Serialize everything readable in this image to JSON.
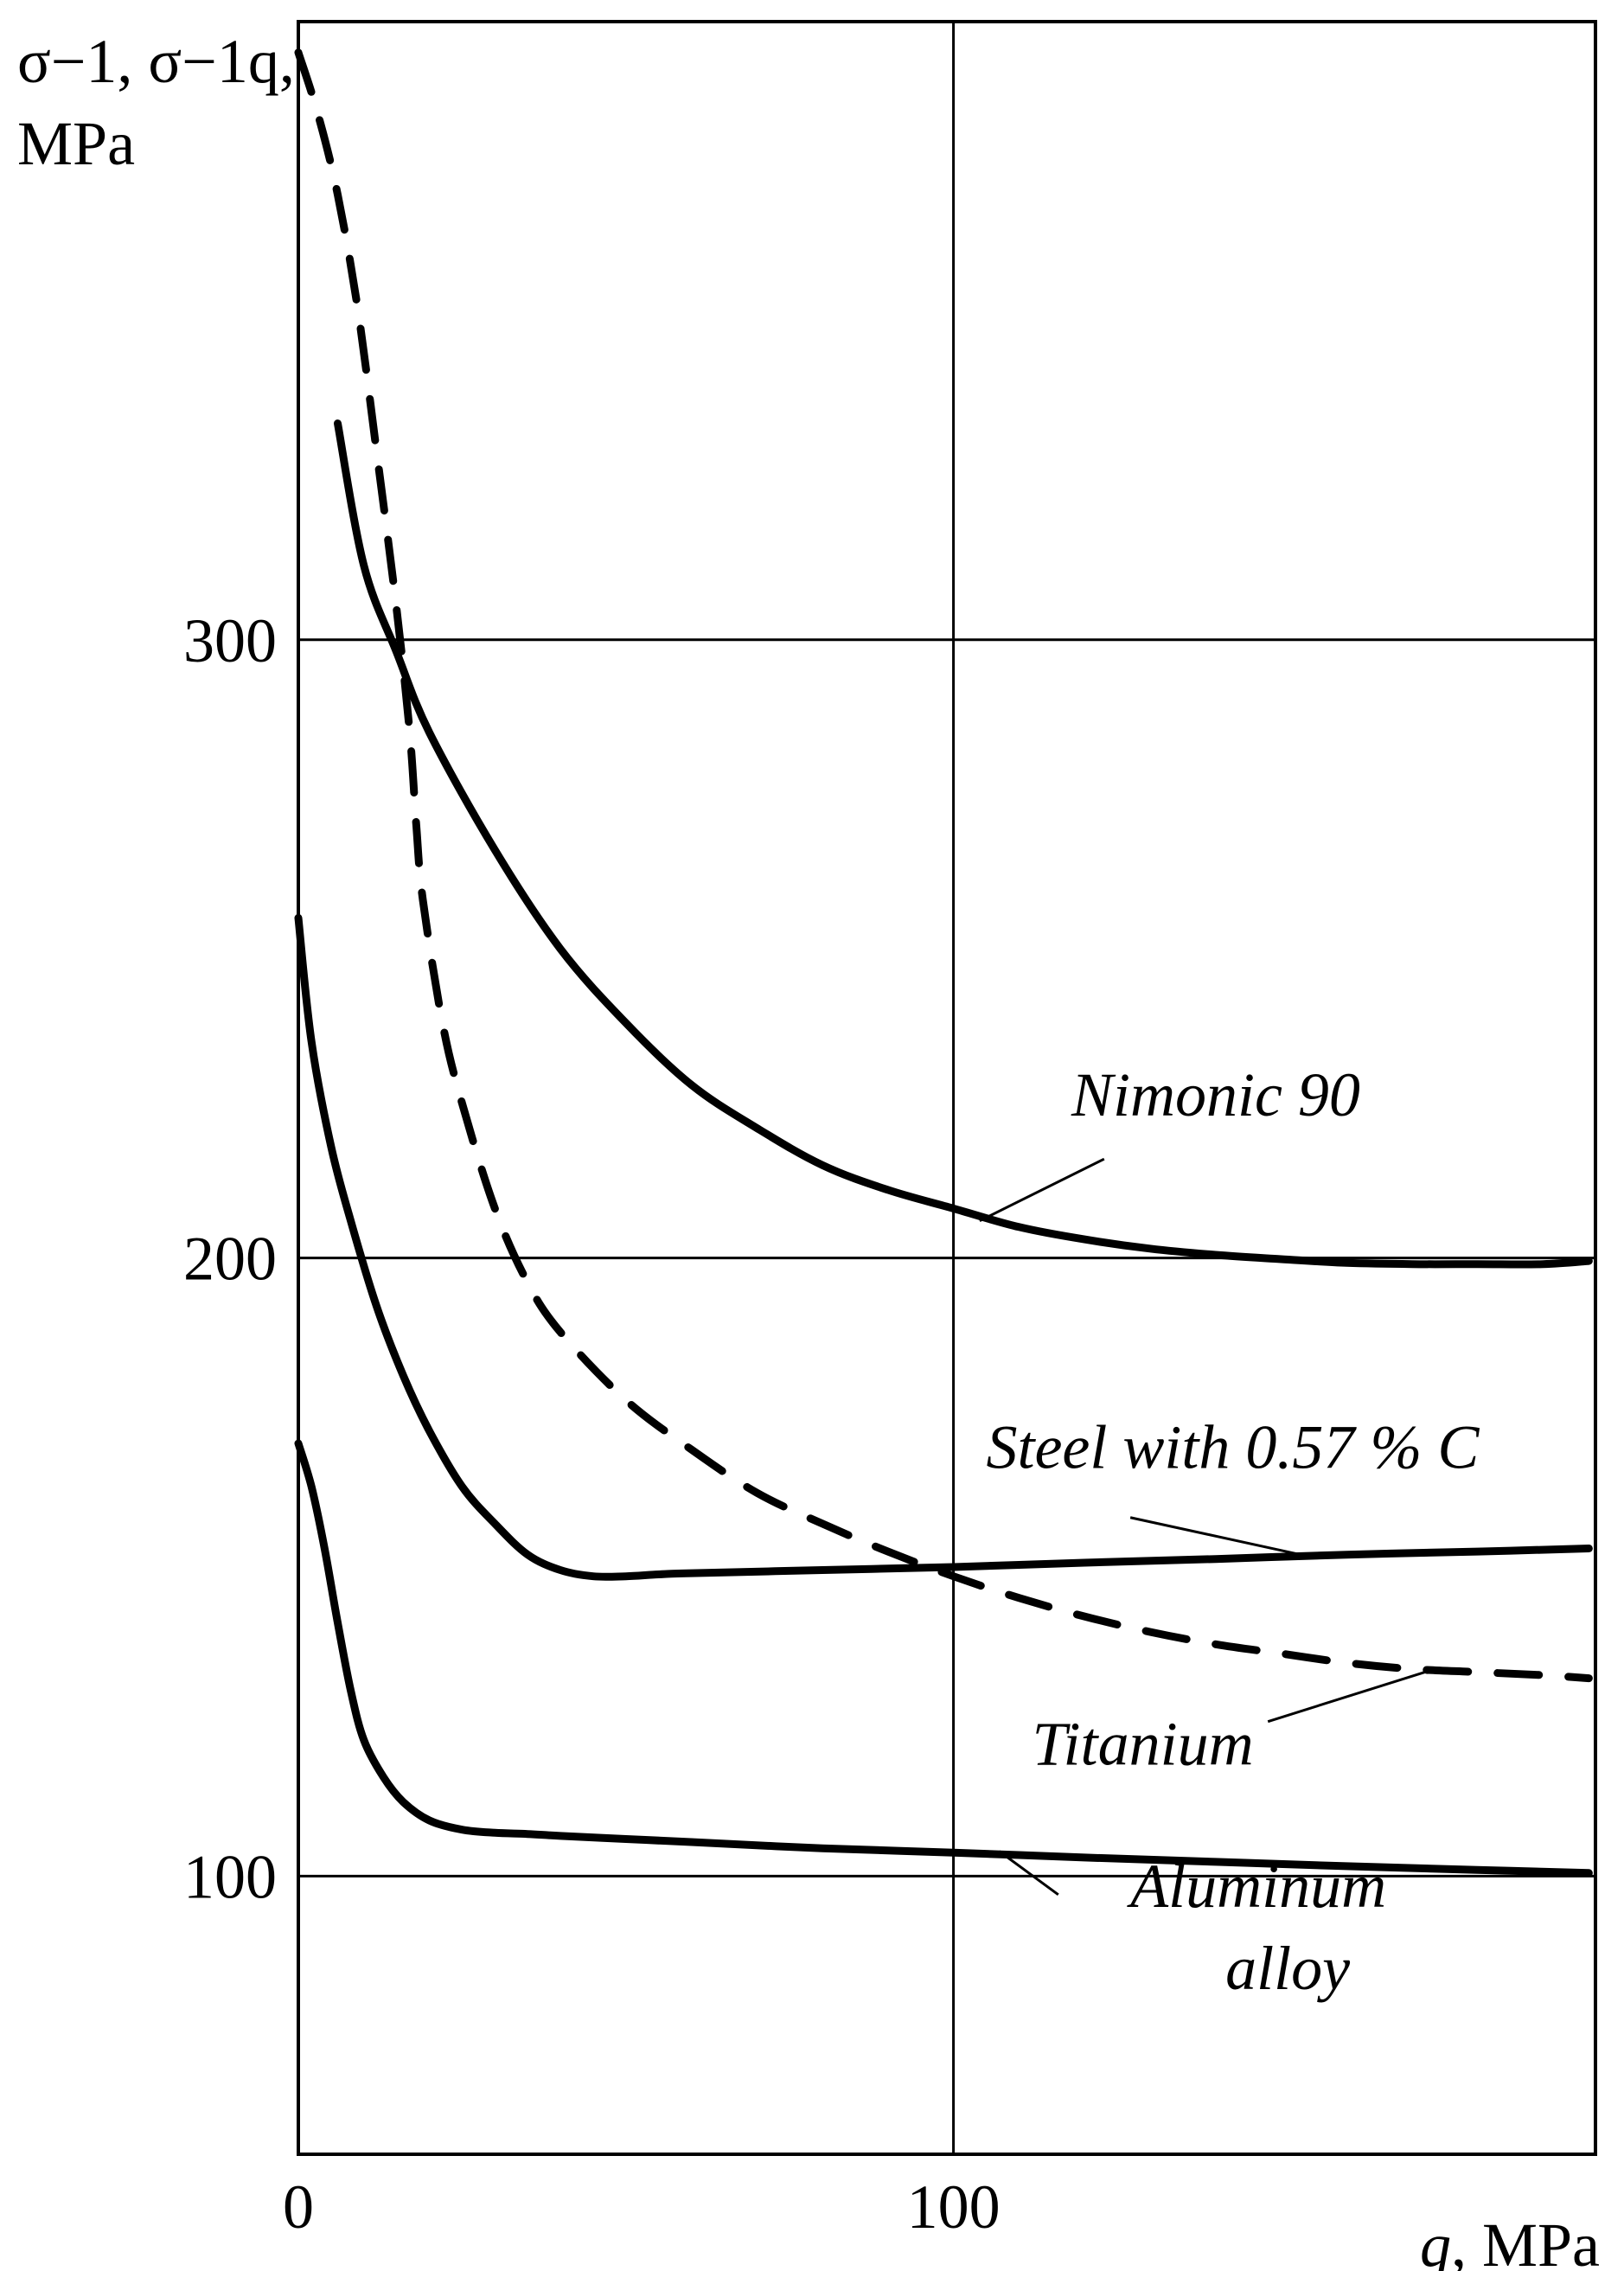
{
  "chart_data": {
    "type": "line",
    "title": "",
    "xlabel_prefix": "q",
    "xlabel_suffix": ", MPa",
    "ylabel_line1": "σ−1, σ−1q,",
    "ylabel_line2": "MPa",
    "xlim": [
      0,
      198
    ],
    "ylim": [
      55,
      400
    ],
    "x_ticks": [
      0,
      100
    ],
    "x_tick_labels": [
      "0",
      "100"
    ],
    "y_ticks": [
      100,
      200,
      300
    ],
    "y_tick_labels": [
      "100",
      "200",
      "300"
    ],
    "grid": true,
    "series": [
      {
        "name": "Nimonic 90",
        "style": "solid",
        "x": [
          6,
          10,
          15,
          20,
          30,
          40,
          50,
          60,
          70,
          80,
          90,
          100,
          110,
          120,
          130,
          140,
          150,
          160,
          170,
          180,
          190,
          197
        ],
        "y": [
          335,
          312,
          298,
          285,
          266,
          250,
          238,
          228,
          221,
          215,
          211,
          208,
          205,
          203,
          201.5,
          200.5,
          199.8,
          199.2,
          199,
          199,
          199,
          199.5
        ]
      },
      {
        "name": "Steel with 0.57 % C",
        "style": "solid",
        "x": [
          0,
          2,
          5,
          8,
          12,
          16,
          20,
          25,
          30,
          35,
          40,
          45,
          50,
          55,
          60,
          80,
          100,
          120,
          140,
          160,
          180,
          197
        ],
        "y": [
          255,
          235,
          218,
          206,
          192,
          181,
          172,
          163,
          157,
          152,
          149.5,
          148.5,
          148.5,
          148.8,
          149,
          149.5,
          150,
          150.7,
          151.3,
          152,
          152.5,
          153
        ]
      },
      {
        "name": "Titanium",
        "style": "dashed",
        "x": [
          0,
          3,
          6,
          9,
          12,
          15,
          17,
          18,
          19,
          22,
          25,
          30,
          35,
          40,
          50,
          60,
          70,
          80,
          90,
          100,
          110,
          120,
          130,
          140,
          150,
          160,
          170,
          180,
          190,
          197
        ],
        "y": [
          395,
          385,
          372,
          354,
          330,
          305,
          285,
          270,
          258,
          238,
          225,
          208,
          196,
          188,
          177,
          169,
          162,
          157,
          152.5,
          148.5,
          145,
          142,
          139.5,
          137.5,
          136,
          134.5,
          133.5,
          133,
          132.5,
          132
        ]
      },
      {
        "name": "Aluminum alloy",
        "style": "solid",
        "x": [
          0,
          2,
          4,
          6,
          8,
          10,
          13,
          16,
          20,
          25,
          30,
          35,
          40,
          50,
          60,
          80,
          100,
          120,
          140,
          160,
          180,
          197
        ],
        "y": [
          170,
          163,
          153,
          141,
          130,
          122,
          116,
          112,
          109,
          107.5,
          107,
          106.8,
          106.5,
          106,
          105.5,
          104.5,
          103.8,
          103,
          102.3,
          101.6,
          101,
          100.5
        ]
      }
    ],
    "annotations": [
      {
        "series": "Nimonic 90",
        "text": "Nimonic 90",
        "text_pos": [
          118,
          223
        ],
        "point": [
          104,
          206
        ],
        "leader_from": [
          123,
          216
        ]
      },
      {
        "series": "Steel with 0.57 % C",
        "text": "Steel with 0.57 % C",
        "text_pos": [
          105,
          166
        ],
        "point": [
          153,
          152
        ],
        "leader_from": [
          127,
          158
        ]
      },
      {
        "series": "Titanium",
        "text": "Titanium",
        "text_pos": [
          112,
          118
        ],
        "point": [
          172,
          133
        ],
        "leader_from": [
          148,
          125
        ]
      },
      {
        "series": "Aluminum alloy",
        "text": "Aluminum\nalloy",
        "text_pos": [
          127,
          95
        ],
        "point": [
          107,
          104
        ],
        "leader_from": [
          116,
          97
        ]
      }
    ]
  }
}
